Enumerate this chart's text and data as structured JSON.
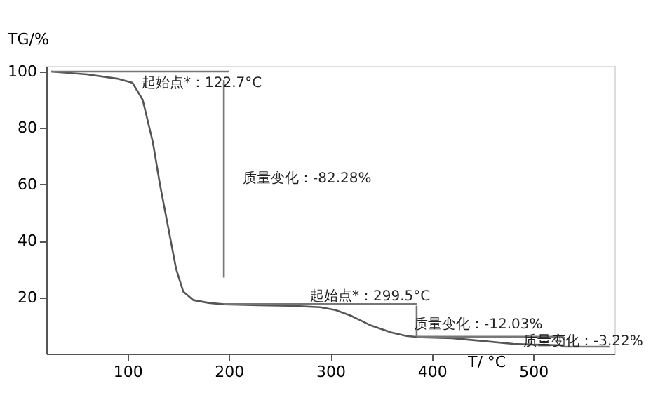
{
  "chart_data": {
    "type": "line",
    "xlabel": "T/ °C",
    "ylabel": "TG/%",
    "x": [
      25,
      60,
      90,
      105,
      115,
      125,
      132,
      140,
      148,
      155,
      165,
      180,
      195,
      230,
      260,
      290,
      305,
      320,
      340,
      360,
      375,
      390,
      420,
      450,
      480,
      500,
      530
    ],
    "xlim": [
      20,
      580
    ],
    "ylim": [
      0,
      102
    ],
    "xticks": [
      100,
      200,
      300,
      400,
      500
    ],
    "yticks": [
      20,
      40,
      60,
      80,
      100
    ],
    "grid": false,
    "legend": false,
    "marker": "none",
    "line_style": "solid",
    "series": [
      {
        "color": "#555555",
        "values": [
          100,
          99,
          97.5,
          96,
          90,
          75,
          60,
          45,
          30,
          22,
          19,
          18,
          17.5,
          17.2,
          17,
          16.5,
          15.5,
          13.5,
          10,
          7.5,
          6.3,
          5.8,
          5.5,
          4.5,
          3.5,
          3.2,
          3
        ]
      },
      {
        "color": "#777777",
        "x": [
          25,
          200
        ],
        "values": [
          100,
          100
        ]
      },
      {
        "color": "#777777",
        "x": [
          195,
          195
        ],
        "values": [
          97,
          27
        ]
      },
      {
        "color": "#777777",
        "x": [
          195,
          385
        ],
        "values": [
          17.6,
          17.6
        ]
      },
      {
        "color": "#777777",
        "x": [
          385,
          385
        ],
        "values": [
          17,
          6
        ]
      },
      {
        "color": "#777777",
        "x": [
          385,
          530
        ],
        "values": [
          6,
          6
        ]
      },
      {
        "color": "#777777",
        "x": [
          530,
          530
        ],
        "values": [
          6,
          2.5
        ]
      },
      {
        "color": "#777777",
        "x": [
          530,
          575
        ],
        "values": [
          2.5,
          2.5
        ]
      }
    ],
    "annotations": [
      "起始点*：122.7°C",
      "质量变化：-82.28%",
      "起始点*：299.5°C",
      "质量变化：-12.03%",
      "质量变化：-3.22%"
    ]
  }
}
